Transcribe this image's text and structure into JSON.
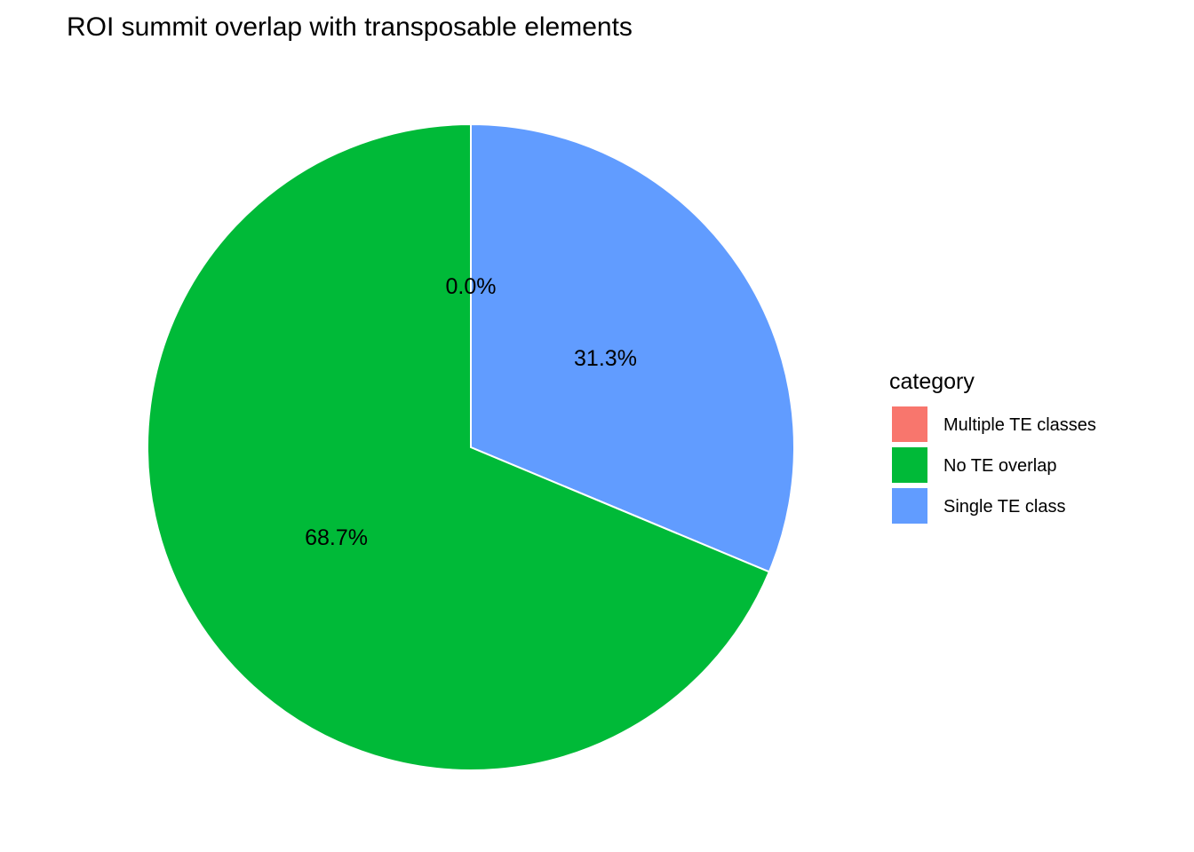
{
  "chart_data": {
    "type": "pie",
    "title": "ROI summit overlap with transposable elements",
    "slices": [
      {
        "label": "Multiple TE classes",
        "value": 0.0,
        "display": "0.0%",
        "color": "#F8766D"
      },
      {
        "label": "No TE overlap",
        "value": 68.7,
        "display": "68.7%",
        "color": "#00BA38"
      },
      {
        "label": "Single TE class",
        "value": 31.3,
        "display": "31.3%",
        "color": "#619CFF"
      }
    ],
    "legend": {
      "title": "category",
      "position": "right"
    }
  }
}
